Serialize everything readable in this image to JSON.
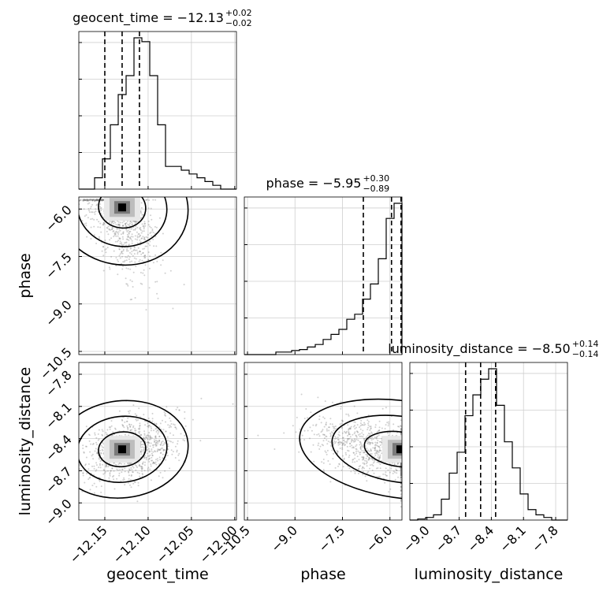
{
  "chart_data": {
    "type": "corner",
    "parameters": [
      "geocent_time",
      "phase",
      "luminosity_distance"
    ],
    "axis_labels": [
      "geocent_time",
      "phase",
      "luminosity_distance"
    ],
    "titles": [
      {
        "param": "geocent_time",
        "prefix": "geocent_time = ",
        "value": "−12.13",
        "plus": "+0.02",
        "minus": "−0.02"
      },
      {
        "param": "phase",
        "prefix": "phase = ",
        "value": "−5.95",
        "plus": "+0.30",
        "minus": "−0.89"
      },
      {
        "param": "luminosity_distance",
        "prefix": "luminosity_distance = ",
        "value": "−8.50",
        "plus": "+0.14",
        "minus": "−0.14"
      }
    ],
    "ranges": {
      "geocent_time": [
        -12.18,
        -11.998
      ],
      "phase": [
        -10.6,
        -5.62
      ],
      "luminosity_distance": [
        -9.16,
        -7.69
      ]
    },
    "ticks": {
      "geocent_time": [
        {
          "v": -12.15,
          "label": "−12.15"
        },
        {
          "v": -12.1,
          "label": "−12.10"
        },
        {
          "v": -12.05,
          "label": "−12.05"
        },
        {
          "v": -12.0,
          "label": "−12.00"
        }
      ],
      "phase": [
        {
          "v": -10.5,
          "label": "−10.5"
        },
        {
          "v": -9.0,
          "label": "−9.0"
        },
        {
          "v": -7.5,
          "label": "−7.5"
        },
        {
          "v": -6.0,
          "label": "−6.0"
        }
      ],
      "luminosity_distance": [
        {
          "v": -9.0,
          "label": "−9.0"
        },
        {
          "v": -8.7,
          "label": "−8.7"
        },
        {
          "v": -8.4,
          "label": "−8.4"
        },
        {
          "v": -8.1,
          "label": "−8.1"
        },
        {
          "v": -7.8,
          "label": "−7.8"
        }
      ]
    },
    "quantiles": {
      "geocent_time": [
        -12.15,
        -12.13,
        -12.11
      ],
      "phase": [
        -6.84,
        -5.95,
        -5.65
      ],
      "luminosity_distance": [
        -8.64,
        -8.5,
        -8.36
      ]
    },
    "histograms": {
      "geocent_time": {
        "edges_start": -12.18,
        "bin_width": 0.0091,
        "counts": [
          0,
          0,
          3,
          8,
          17,
          25,
          30,
          40,
          39,
          30,
          17,
          6,
          6,
          5,
          4,
          3,
          2,
          1,
          0,
          0
        ]
      },
      "phase": {
        "edges_start": -10.6,
        "bin_width": 0.249,
        "counts": [
          0,
          0,
          0,
          0,
          0.5,
          0.5,
          0.8,
          1,
          1.5,
          2,
          3,
          4,
          5,
          7,
          8,
          11,
          14,
          19,
          27,
          30
        ]
      },
      "luminosity_distance": {
        "edges_start": -9.16,
        "bin_width": 0.0735,
        "counts": [
          0,
          0.2,
          0.5,
          1,
          4,
          9,
          13,
          20,
          24,
          27,
          29,
          22,
          15,
          10,
          5,
          2,
          1,
          0.5,
          0,
          0
        ]
      }
    },
    "joint_peaks": {
      "geocent_time|phase": {
        "x": -12.13,
        "y": -5.95
      },
      "geocent_time|luminosity_distance": {
        "x": -12.13,
        "y": -8.5
      },
      "phase|luminosity_distance": {
        "x": -5.67,
        "y": -8.5
      }
    },
    "grid": true
  }
}
